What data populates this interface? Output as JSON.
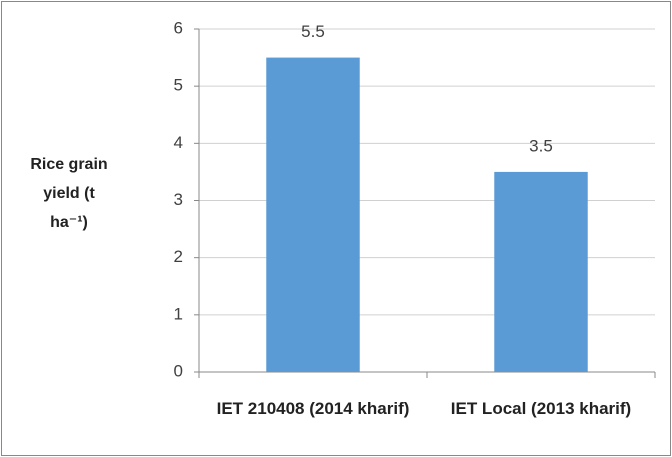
{
  "chart_data": {
    "type": "bar",
    "ylabel": [
      "Rice grain",
      "yield (t",
      "ha⁻¹)"
    ],
    "categories": [
      "IET 210408 (2014 kharif)",
      "IET Local (2013 kharif)"
    ],
    "values": [
      5.5,
      3.5
    ],
    "color": "#5b9bd5",
    "ylim": [
      0,
      6
    ],
    "yticks": [
      0,
      1,
      2,
      3,
      4,
      5,
      6
    ],
    "grid": true
  }
}
